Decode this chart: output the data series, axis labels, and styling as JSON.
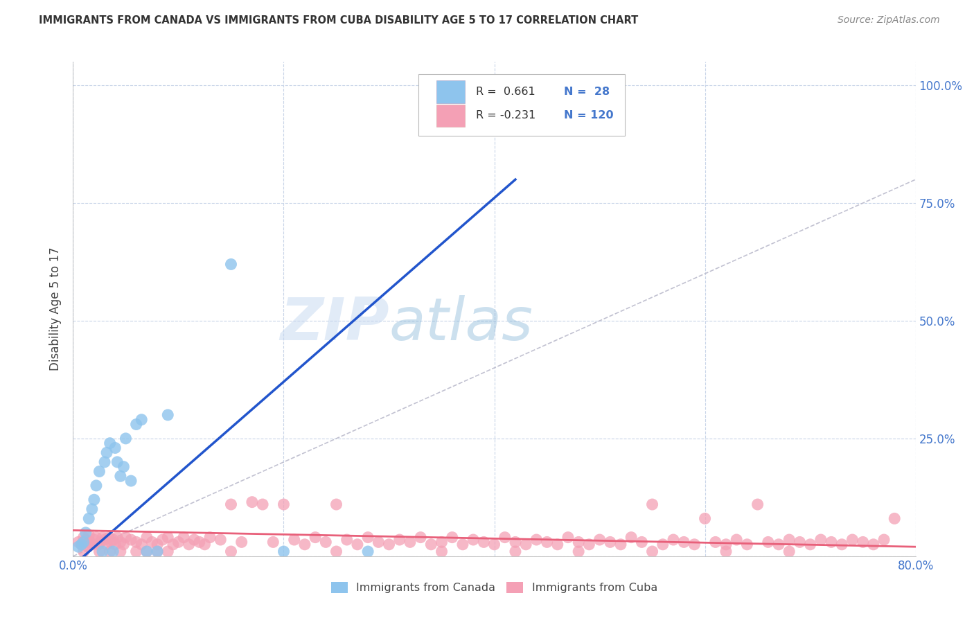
{
  "title": "IMMIGRANTS FROM CANADA VS IMMIGRANTS FROM CUBA DISABILITY AGE 5 TO 17 CORRELATION CHART",
  "source": "Source: ZipAtlas.com",
  "ylabel": "Disability Age 5 to 17",
  "xlim": [
    0,
    0.8
  ],
  "ylim": [
    0,
    1.05
  ],
  "canada_R": 0.661,
  "canada_N": 28,
  "cuba_R": -0.231,
  "cuba_N": 120,
  "canada_color": "#8EC4ED",
  "cuba_color": "#F4A0B5",
  "canada_line_color": "#2255CC",
  "cuba_line_color": "#E8607A",
  "diagonal_color": "#BBBBCC",
  "background_color": "#FFFFFF",
  "grid_color": "#C8D4E8",
  "legend_label_canada": "Immigrants from Canada",
  "legend_label_cuba": "Immigrants from Cuba",
  "title_color": "#333333",
  "tick_color": "#4477CC",
  "watermark_zip": "ZIP",
  "watermark_atlas": "atlas",
  "canada_scatter_x": [
    0.005,
    0.008,
    0.01,
    0.012,
    0.015,
    0.018,
    0.02,
    0.022,
    0.025,
    0.028,
    0.03,
    0.032,
    0.035,
    0.038,
    0.04,
    0.042,
    0.045,
    0.048,
    0.05,
    0.055,
    0.06,
    0.065,
    0.07,
    0.08,
    0.09,
    0.15,
    0.2,
    0.28
  ],
  "canada_scatter_y": [
    0.02,
    0.025,
    0.03,
    0.05,
    0.08,
    0.1,
    0.12,
    0.15,
    0.18,
    0.01,
    0.2,
    0.22,
    0.24,
    0.01,
    0.23,
    0.2,
    0.17,
    0.19,
    0.25,
    0.16,
    0.28,
    0.29,
    0.01,
    0.01,
    0.3,
    0.62,
    0.01,
    0.01
  ],
  "cuba_scatter_x": [
    0.005,
    0.008,
    0.01,
    0.012,
    0.014,
    0.015,
    0.016,
    0.018,
    0.02,
    0.022,
    0.024,
    0.026,
    0.028,
    0.03,
    0.032,
    0.034,
    0.036,
    0.038,
    0.04,
    0.042,
    0.045,
    0.048,
    0.05,
    0.055,
    0.06,
    0.065,
    0.07,
    0.075,
    0.08,
    0.085,
    0.09,
    0.095,
    0.1,
    0.105,
    0.11,
    0.115,
    0.12,
    0.125,
    0.13,
    0.14,
    0.15,
    0.16,
    0.17,
    0.18,
    0.19,
    0.2,
    0.21,
    0.22,
    0.23,
    0.24,
    0.25,
    0.26,
    0.27,
    0.28,
    0.29,
    0.3,
    0.31,
    0.32,
    0.33,
    0.34,
    0.35,
    0.36,
    0.37,
    0.38,
    0.39,
    0.4,
    0.41,
    0.42,
    0.43,
    0.44,
    0.45,
    0.46,
    0.47,
    0.48,
    0.49,
    0.5,
    0.51,
    0.52,
    0.53,
    0.54,
    0.55,
    0.56,
    0.57,
    0.58,
    0.59,
    0.6,
    0.61,
    0.62,
    0.63,
    0.64,
    0.65,
    0.66,
    0.67,
    0.68,
    0.69,
    0.7,
    0.71,
    0.72,
    0.73,
    0.74,
    0.75,
    0.76,
    0.77,
    0.78,
    0.15,
    0.25,
    0.35,
    0.42,
    0.48,
    0.55,
    0.62,
    0.68,
    0.01,
    0.025,
    0.035,
    0.045,
    0.06,
    0.07,
    0.08,
    0.09
  ],
  "cuba_scatter_y": [
    0.03,
    0.025,
    0.04,
    0.035,
    0.02,
    0.045,
    0.03,
    0.025,
    0.035,
    0.04,
    0.025,
    0.03,
    0.04,
    0.035,
    0.025,
    0.04,
    0.03,
    0.035,
    0.025,
    0.04,
    0.03,
    0.025,
    0.04,
    0.035,
    0.03,
    0.025,
    0.04,
    0.03,
    0.025,
    0.035,
    0.04,
    0.025,
    0.03,
    0.04,
    0.025,
    0.035,
    0.03,
    0.025,
    0.04,
    0.035,
    0.11,
    0.03,
    0.115,
    0.11,
    0.03,
    0.11,
    0.035,
    0.025,
    0.04,
    0.03,
    0.11,
    0.035,
    0.025,
    0.04,
    0.03,
    0.025,
    0.035,
    0.03,
    0.04,
    0.025,
    0.03,
    0.04,
    0.025,
    0.035,
    0.03,
    0.025,
    0.04,
    0.03,
    0.025,
    0.035,
    0.03,
    0.025,
    0.04,
    0.03,
    0.025,
    0.035,
    0.03,
    0.025,
    0.04,
    0.03,
    0.11,
    0.025,
    0.035,
    0.03,
    0.025,
    0.08,
    0.03,
    0.025,
    0.035,
    0.025,
    0.11,
    0.03,
    0.025,
    0.035,
    0.03,
    0.025,
    0.035,
    0.03,
    0.025,
    0.035,
    0.03,
    0.025,
    0.035,
    0.08,
    0.01,
    0.01,
    0.01,
    0.01,
    0.01,
    0.01,
    0.01,
    0.01,
    0.01,
    0.01,
    0.01,
    0.01,
    0.01,
    0.01,
    0.01,
    0.01
  ],
  "canada_trend_x0": 0.0,
  "canada_trend_y0": -0.02,
  "canada_trend_x1": 0.42,
  "canada_trend_y1": 0.8,
  "cuba_trend_x0": 0.0,
  "cuba_trend_y0": 0.055,
  "cuba_trend_x1": 0.8,
  "cuba_trend_y1": 0.02
}
